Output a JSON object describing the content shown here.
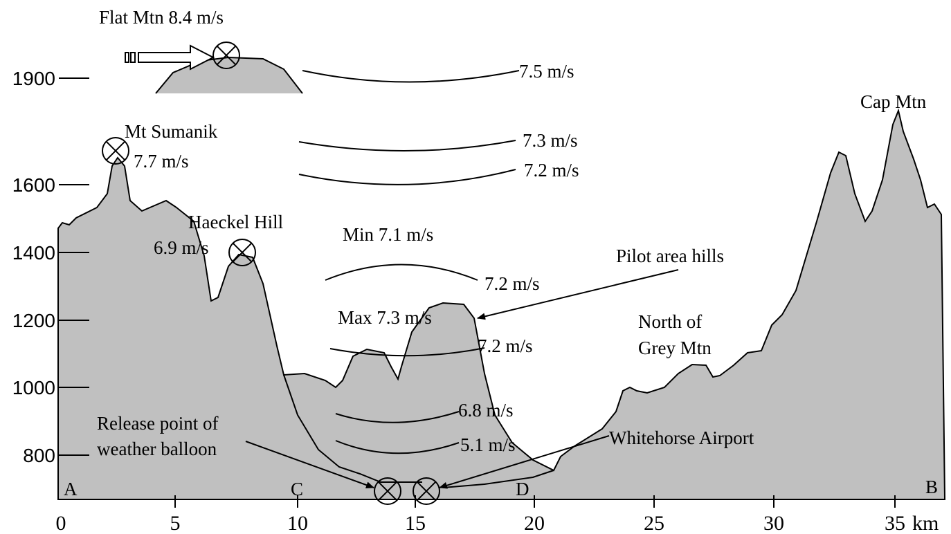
{
  "labels": [
    "Flat Mtn 8.4 m/s",
    "7.5 m/s",
    "Cap Mtn",
    "Mt Sumanik",
    "7.7 m/s",
    "7.3 m/s",
    "7.2 m/s",
    "Haeckel Hill",
    "6.9 m/s",
    "Min 7.1 m/s",
    "Pilot area hills",
    "7.2 m/s",
    "Max 7.3 m/s",
    "North of",
    "Grey Mtn",
    "7.2 m/s",
    "6.8 m/s",
    "Release point of",
    "weather balloon",
    "Whitehorse Airport",
    "5.1 m/s"
  ],
  "points": [
    "A",
    "C",
    "D",
    "B"
  ],
  "y_axis": {
    "ticks": [
      1900,
      1600,
      1400,
      1200,
      1000,
      800
    ]
  },
  "x_axis": {
    "ticks": [
      0,
      5,
      10,
      15,
      20,
      25,
      30,
      35
    ],
    "unit": "km"
  }
}
